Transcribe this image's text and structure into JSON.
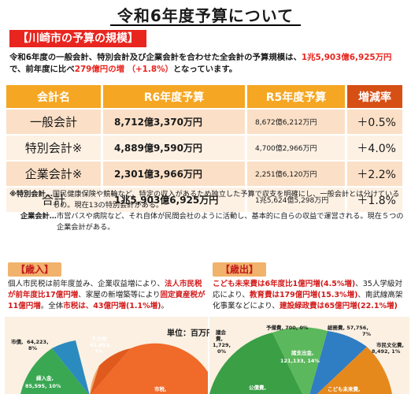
{
  "title": "令和6年度予算について",
  "section": "【川崎市の予算の規模】",
  "intro": {
    "p1": "令和6年度の一般会計、特別会計及び企業会計を合わせた全会計の予算規模は、",
    "h1": "1兆5,903億6,925万円",
    "p2": "で、前年度に比べ",
    "h2": "279億円の増 （+1.8%）",
    "p3": "となっています。"
  },
  "table": {
    "headers": [
      "会計名",
      "R6年度予算",
      "R5年度予算",
      "増減率"
    ],
    "rows": [
      {
        "name": "一般会計",
        "r6": "8,712億3,370万円",
        "r5": "8,672億6,212万円",
        "pct": "＋0.5%"
      },
      {
        "name": "特別会計※",
        "r6": "4,889億9,590万円",
        "r5": "4,700億2,966万円",
        "pct": "＋4.0%"
      },
      {
        "name": "企業会計※",
        "r6": "2,301億3,966万円",
        "r5": "2,251億6,120万円",
        "pct": "＋2.2%"
      },
      {
        "name": "合計",
        "r6": "1兆5,903億6,925万円",
        "r5": "1兆5,624億5,298万円",
        "pct": "＋1.8%"
      }
    ]
  },
  "notes": {
    "special_label": "※特別会計…",
    "special_text": "国民健康保険や競輪など、特定の収入があるため独立した予算で収支を明確にし、一般会計とは分けているもの。現在13の特別会計がある。",
    "enterprise_label": "企業会計…",
    "enterprise_text": "市営バスや病院など、それ自体が民間会社のように活動し、基本的に自らの収益で運営される。現在５つの企業会計がある。"
  },
  "revenue": {
    "heading": "【歳入】",
    "t1": "個人市民税は前年度並み、企業収益増により、",
    "t2": "法人市民税が前年度比17億円増",
    "t3": "、家屋の新増築等により",
    "t4": "固定資産税が11億円増",
    "t5": "。全体",
    "t6": "市税は、43億円増(1.1%増)",
    "t7": "。",
    "unit": "単位：百万円",
    "labels": {
      "a_name": "市債,",
      "a_val": "64,223,",
      "a_pct": "8%",
      "b_name": "その他",
      "b_val": "61,653,",
      "b_pct": "7%",
      "c_name": "繰入金,",
      "c_val": "85,595, 10%",
      "d_name": "市税,"
    }
  },
  "expenditure": {
    "heading": "【歳出】",
    "t1": "こども未来費は6年度比1億円増(4.5%増)",
    "t2": "、35人学級対応により、",
    "t3": "教育費は179億円増(15.3%増)",
    "t4": "、南武線高架化事業などにより、",
    "t5": "建設緑政費は65億円増(22.1%増)",
    "labels": {
      "a_name": "議会",
      "a_sub": "費,",
      "a_val": "1,729,",
      "a_pct": "0%",
      "b_name": "予備費, 700, 0%",
      "c_name": "総務費, 57,756,",
      "c_pct": "7%",
      "d_name": "市民文化費,",
      "d_val": "8,492, 1%",
      "e_name": "諸支出金,",
      "e_val": "121,133, 14%",
      "f_name": "公債費,",
      "g_name": "こども未来費,"
    }
  }
}
